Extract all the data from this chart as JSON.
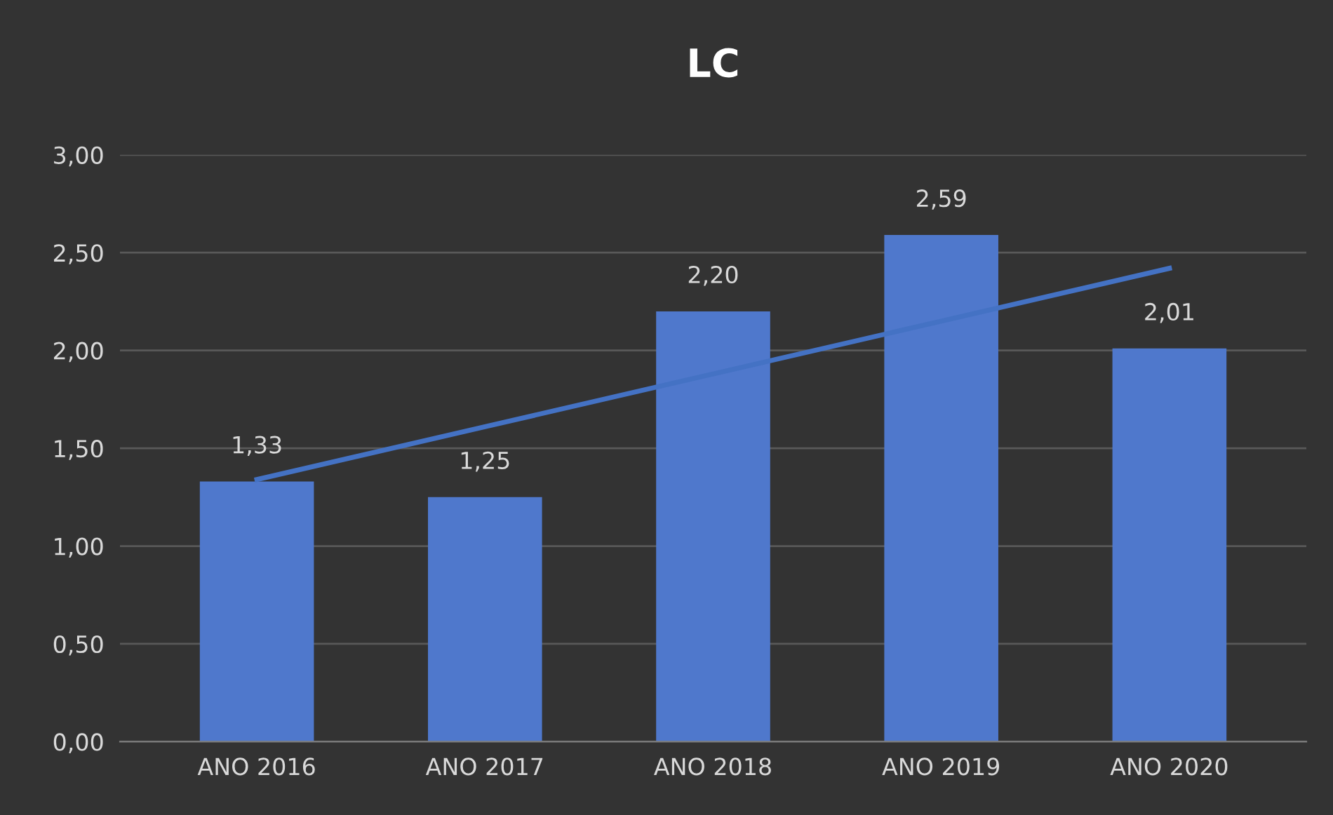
{
  "chart_data": {
    "type": "bar",
    "title": "LC",
    "categories": [
      "ANO 2016",
      "ANO 2017",
      "ANO 2018",
      "ANO 2019",
      "ANO 2020"
    ],
    "series": [
      {
        "color": "#4f78cc",
        "values": [
          1.33,
          1.25,
          2.2,
          2.59,
          2.01
        ],
        "value_labels": [
          "1,33",
          "1,25",
          "2,20",
          "2,59",
          "2,01"
        ]
      },
      {
        "type": "line",
        "color": "#4472c4",
        "values": [
          1.34,
          1.61,
          1.88,
          2.15,
          2.42
        ]
      }
    ],
    "ylim": [
      0,
      3
    ],
    "yticks": [
      {
        "value": 0,
        "label": "0,00"
      },
      {
        "value": 0.5,
        "label": "0,50"
      },
      {
        "value": 1,
        "label": "1,00"
      },
      {
        "value": 1.5,
        "label": "1,50"
      },
      {
        "value": 2,
        "label": "2,00"
      },
      {
        "value": 2.5,
        "label": "2,50"
      },
      {
        "value": 3,
        "label": "3,00"
      }
    ],
    "grid": "y",
    "legend": false
  }
}
